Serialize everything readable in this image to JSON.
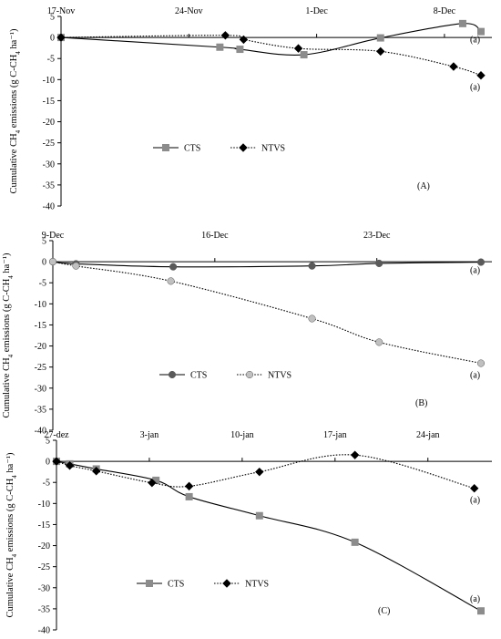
{
  "chart_data": [
    {
      "type": "line",
      "panel_label": "(A)",
      "ylabel": "Cumulative CH4 emissions (g C-CH4 ha⁻¹)",
      "ylim": [
        -40,
        5
      ],
      "yticks": [
        5,
        0,
        -5,
        -10,
        -15,
        -20,
        -25,
        -30,
        -35,
        -40
      ],
      "xlim": [
        "17-Nov",
        "10-Dec"
      ],
      "x_ticks": [
        {
          "label": "17-Nov",
          "day": 0
        },
        {
          "label": "24-Nov",
          "day": 7
        },
        {
          "label": "1-Dec",
          "day": 14
        },
        {
          "label": "8-Dec",
          "day": 21
        }
      ],
      "x_axis_position": "top",
      "x_max_day": 23,
      "legend": {
        "placement": "center-left"
      },
      "series": [
        {
          "name": "CTS",
          "marker": "square",
          "line": "solid",
          "color": "#8c8c8c",
          "line_color": "#000000",
          "points": [
            {
              "day": 0,
              "value": 0
            },
            {
              "day": 8.7,
              "value": -2.3
            },
            {
              "day": 9.8,
              "value": -2.8
            },
            {
              "day": 13.3,
              "value": -4.1
            },
            {
              "day": 17.5,
              "value": -0.1
            },
            {
              "day": 22,
              "value": 3.3
            },
            {
              "day": 23,
              "value": 1.4
            }
          ],
          "significance": "(a)"
        },
        {
          "name": "NTVS",
          "marker": "diamond",
          "line": "dotted",
          "color": "#000000",
          "line_color": "#000000",
          "points": [
            {
              "day": 0,
              "value": 0
            },
            {
              "day": 9,
              "value": 0.5
            },
            {
              "day": 10,
              "value": -0.5
            },
            {
              "day": 13,
              "value": -2.6
            },
            {
              "day": 17.5,
              "value": -3.3
            },
            {
              "day": 21.5,
              "value": -6.9
            },
            {
              "day": 23,
              "value": -9.0
            }
          ],
          "significance": "(a)"
        }
      ]
    },
    {
      "type": "line",
      "panel_label": "(B)",
      "ylabel": "Cumulative CH4 emissions (g C-CH4 ha⁻¹)",
      "ylim": [
        -40,
        5
      ],
      "yticks": [
        5,
        0,
        -5,
        -10,
        -15,
        -20,
        -25,
        -30,
        -35,
        -40
      ],
      "xlim": [
        "9-Dec",
        "27-Dec"
      ],
      "x_ticks": [
        {
          "label": "9-Dec",
          "day": 0
        },
        {
          "label": "16-Dec",
          "day": 7
        },
        {
          "label": "23-Dec",
          "day": 14
        }
      ],
      "x_axis_position": "top",
      "x_max_day": 18.5,
      "legend": {
        "placement": "center-left"
      },
      "series": [
        {
          "name": "CTS",
          "marker": "circle",
          "line": "solid",
          "color": "#5a5a5a",
          "line_color": "#000000",
          "points": [
            {
              "day": 0,
              "value": 0
            },
            {
              "day": 1,
              "value": -0.5
            },
            {
              "day": 5.2,
              "value": -1.2
            },
            {
              "day": 11.2,
              "value": -1.0
            },
            {
              "day": 14.1,
              "value": -0.4
            },
            {
              "day": 18.5,
              "value": -0.1
            }
          ],
          "significance": "(a)"
        },
        {
          "name": "NTVS",
          "marker": "circle",
          "line": "dotted",
          "color": "#c0c0c0",
          "line_color": "#000000",
          "points": [
            {
              "day": 0,
              "value": 0
            },
            {
              "day": 1,
              "value": -1.0
            },
            {
              "day": 5.1,
              "value": -4.6
            },
            {
              "day": 11.2,
              "value": -13.5
            },
            {
              "day": 14.1,
              "value": -19.1
            },
            {
              "day": 18.5,
              "value": -24.1
            }
          ],
          "significance": "(a)"
        }
      ]
    },
    {
      "type": "line",
      "panel_label": "(C)",
      "ylabel": "Cumulative CH4 emissions (g C-CH4 ha⁻¹)",
      "ylim": [
        -40,
        5
      ],
      "yticks": [
        5,
        0,
        -5,
        -10,
        -15,
        -20,
        -25,
        -30,
        -35,
        -40
      ],
      "xlim": [
        "27-dez",
        "28-jan"
      ],
      "x_ticks": [
        {
          "label": "27-dez",
          "day": 0
        },
        {
          "label": "3-jan",
          "day": 7
        },
        {
          "label": "10-jan",
          "day": 14
        },
        {
          "label": "17-jan",
          "day": 21
        },
        {
          "label": "24-jan",
          "day": 28
        }
      ],
      "x_axis_position": "top",
      "x_max_day": 32,
      "legend": {
        "placement": "bottom-left"
      },
      "series": [
        {
          "name": "CTS",
          "marker": "square",
          "line": "solid",
          "color": "#8c8c8c",
          "line_color": "#000000",
          "points": [
            {
              "day": 0,
              "value": 0
            },
            {
              "day": 1,
              "value": -0.6
            },
            {
              "day": 3,
              "value": -1.8
            },
            {
              "day": 7.5,
              "value": -4.5
            },
            {
              "day": 10,
              "value": -8.4
            },
            {
              "day": 15.3,
              "value": -12.9
            },
            {
              "day": 22.5,
              "value": -19.2
            },
            {
              "day": 32,
              "value": -35.5
            }
          ],
          "significance": "(a)"
        },
        {
          "name": "NTVS",
          "marker": "diamond",
          "line": "dotted",
          "color": "#000000",
          "line_color": "#000000",
          "points": [
            {
              "day": 0,
              "value": 0
            },
            {
              "day": 1,
              "value": -1.0
            },
            {
              "day": 3,
              "value": -2.3
            },
            {
              "day": 7.2,
              "value": -5.1
            },
            {
              "day": 10,
              "value": -5.9
            },
            {
              "day": 15.3,
              "value": -2.5
            },
            {
              "day": 22.5,
              "value": 1.5
            },
            {
              "day": 31.5,
              "value": -6.4
            }
          ],
          "significance": "(a)"
        }
      ]
    }
  ]
}
